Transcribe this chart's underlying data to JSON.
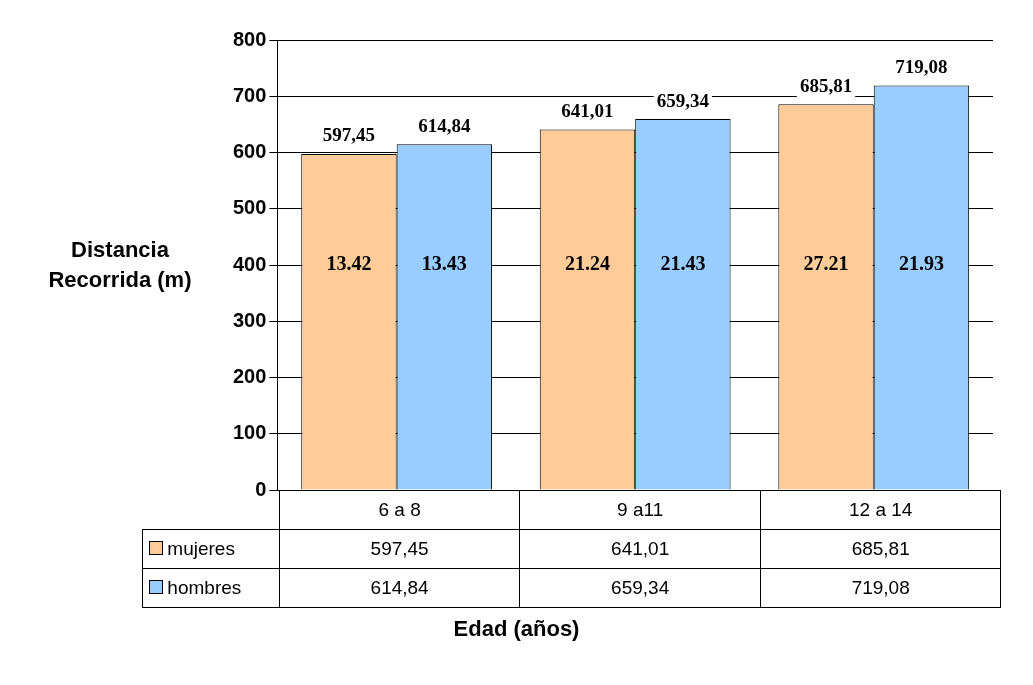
{
  "chart_data": {
    "type": "bar",
    "xlabel": "Edad (años)",
    "ylabel": "Distancia Recorrida (m)",
    "categories": [
      "6 a 8",
      "9 a11",
      "12 a 14"
    ],
    "series": [
      {
        "name": "mujeres",
        "color": "#ffcc99",
        "values": [
          597.45,
          641.01,
          685.81
        ],
        "value_labels": [
          "597,45",
          "641,01",
          "685,81"
        ]
      },
      {
        "name": "hombres",
        "color": "#99ccff",
        "values": [
          614.84,
          659.34,
          719.08
        ],
        "value_labels": [
          "614,84",
          "659,34",
          "719,08"
        ]
      }
    ],
    "ylim": [
      0,
      800
    ],
    "yticks": [
      0,
      100,
      200,
      300,
      400,
      500,
      600,
      700,
      800
    ],
    "grid": "y",
    "legend": "bottom",
    "annotations": [
      "13.42",
      "13.43",
      "21.24",
      "21.43",
      "27.21",
      "21.93"
    ]
  }
}
